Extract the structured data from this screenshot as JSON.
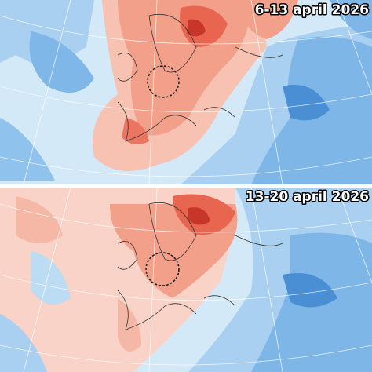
{
  "panels": [
    {
      "label": "6-13 april 2026"
    },
    {
      "label": "13-20 april 2026"
    }
  ]
}
